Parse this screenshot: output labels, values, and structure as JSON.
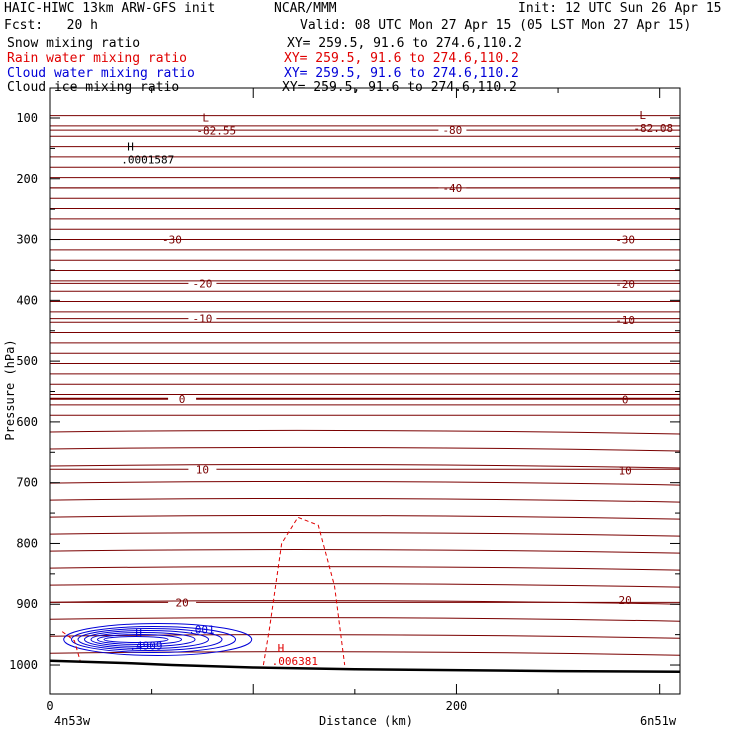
{
  "header": {
    "model": "HAIC-HIWC 13km ARW-GFS init",
    "org": "NCAR/MMM",
    "init": "Init: 12 UTC Sun 26 Apr 15",
    "fcst": "Fcst:   20 h",
    "valid": "Valid: 08 UTC Mon 27 Apr 15 (05 LST Mon 27 Apr 15)"
  },
  "fields": [
    {
      "name": "Snow mixing ratio",
      "xy": "XY= 259.5, 91.6 to 274.6,110.2",
      "color": "#000000"
    },
    {
      "name": "Rain water mixing ratio",
      "xy": "XY= 259.5, 91.6 to 274.6,110.2",
      "color": "#e00000"
    },
    {
      "name": "Cloud water mixing ratio",
      "xy": "XY= 259.5, 91.6 to 274.6,110.2",
      "color": "#0000d8"
    },
    {
      "name": "Cloud ice mixing ratio",
      "xy": "XY= 259.5, 91.6 to 274.6,110.2",
      "color": "#000000"
    }
  ],
  "colors": {
    "temperature": "#7a0000",
    "rain": "#e00000",
    "cloud": "#0000d8",
    "terrain": "#000000"
  },
  "chart_data": {
    "type": "contour-cross-section",
    "xlabel": "Distance (km)",
    "ylabel": "Pressure (hPa)",
    "xlim": [
      0,
      310
    ],
    "ylim": [
      1037,
      87
    ],
    "x_ticks": [
      0,
      200
    ],
    "y_ticks": [
      100,
      200,
      300,
      400,
      500,
      600,
      700,
      800,
      900,
      1000
    ],
    "x_end_labels": [
      "4n53w",
      "6n51w"
    ],
    "temperature_contours": [
      {
        "label": "-80",
        "p": 120,
        "lx": 198
      },
      {
        "label": "-40",
        "p": 215,
        "lx": 198
      },
      {
        "label": "-30",
        "p": 300,
        "lx": 60
      },
      {
        "label": "-20",
        "p": 372,
        "lx": 75
      },
      {
        "label": "-10",
        "p": 430,
        "lx": 75
      },
      {
        "label": "0",
        "p": 562,
        "lx": 65
      },
      {
        "label": "10",
        "p": 678,
        "lx": 75
      },
      {
        "label": "20",
        "p": 897,
        "lx": 65
      }
    ],
    "right_labels": [
      {
        "label": "-30",
        "p": 300
      },
      {
        "label": "-20",
        "p": 373
      },
      {
        "label": "-10",
        "p": 432
      },
      {
        "label": "0",
        "p": 563
      },
      {
        "label": "10",
        "p": 680
      },
      {
        "label": "20",
        "p": 893
      }
    ],
    "extrema": [
      {
        "kind": "L",
        "value": "-82.55",
        "x": 75,
        "p": 112,
        "color": "#7a0000"
      },
      {
        "kind": "L",
        "value": "-82.08",
        "x": 290,
        "p": 108,
        "color": "#7a0000"
      },
      {
        "kind": "H",
        "value": ".0001587",
        "x": 38,
        "p": 160,
        "color": "#000000"
      },
      {
        "kind": "H",
        "value": ".4909",
        "x": 42,
        "p": 960,
        "color": "#0000d8"
      },
      {
        "kind": "H",
        "value": ".006381",
        "x": 112,
        "p": 985,
        "color": "#e00000"
      }
    ],
    "cloud_label": ".001",
    "terrain_p": [
      [
        0,
        993
      ],
      [
        40,
        997
      ],
      [
        60,
        1000
      ],
      [
        100,
        1004
      ],
      [
        150,
        1007
      ],
      [
        250,
        1010
      ],
      [
        310,
        1011
      ]
    ]
  }
}
